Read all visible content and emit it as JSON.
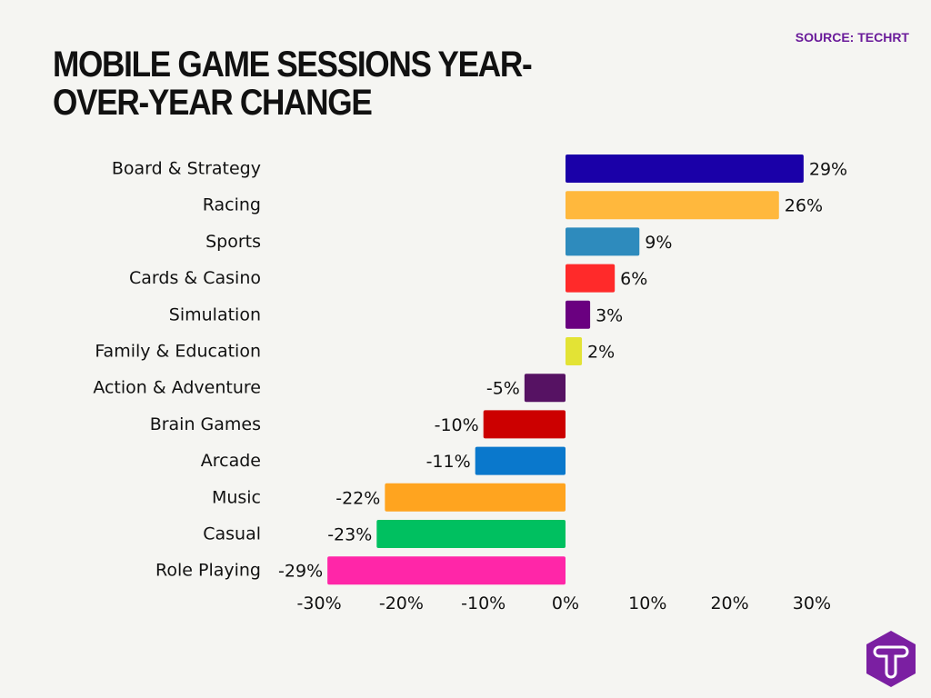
{
  "title": "MOBILE GAME SESSIONS YEAR-OVER-YEAR CHANGE",
  "source": "SOURCE: TECHRT",
  "logo_text": "T",
  "chart_data": {
    "type": "bar",
    "orientation": "horizontal",
    "title": "MOBILE GAME SESSIONS YEAR-OVER-YEAR CHANGE",
    "xlabel": "",
    "ylabel": "",
    "xlim": [
      -30,
      30
    ],
    "grid": false,
    "categories": [
      "Board & Strategy",
      "Racing",
      "Sports",
      "Cards & Casino",
      "Simulation",
      "Family & Education",
      "Action & Adventure",
      "Brain Games",
      "Arcade",
      "Music",
      "Casual",
      "Role Playing"
    ],
    "values": [
      29,
      26,
      9,
      6,
      3,
      2,
      -5,
      -10,
      -11,
      -22,
      -23,
      -29
    ],
    "data_labels": [
      "29%",
      "26%",
      "9%",
      "6%",
      "3%",
      "2%",
      "-5%",
      "-10%",
      "-11%",
      "-22%",
      "-23%",
      "-29%"
    ],
    "colors": [
      "#1a00a8",
      "#ffb83d",
      "#2e8bbd",
      "#ff2a2a",
      "#6a0080",
      "#e3e335",
      "#561263",
      "#cc0000",
      "#0a78cc",
      "#ffa41f",
      "#00c060",
      "#ff26a8"
    ],
    "x_ticks": [
      -30,
      -20,
      -10,
      0,
      10,
      20,
      30
    ],
    "x_tick_labels": [
      "-30%",
      "-20%",
      "-10%",
      "0%",
      "10%",
      "20%",
      "30%"
    ]
  }
}
